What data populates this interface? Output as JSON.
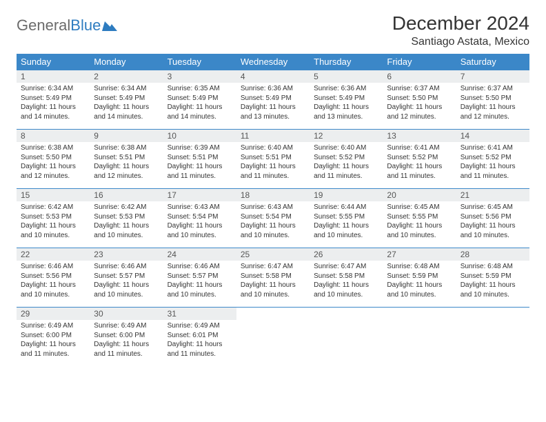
{
  "brand": {
    "part1": "General",
    "part2": "Blue"
  },
  "title": "December 2024",
  "location": "Santiago Astata, Mexico",
  "colors": {
    "header_bg": "#3b87c8",
    "header_text": "#ffffff",
    "daynum_bg": "#eceeef",
    "border": "#3b87c8",
    "logo_gray": "#6b6b6b",
    "logo_blue": "#2e7cc0"
  },
  "weekdays": [
    "Sunday",
    "Monday",
    "Tuesday",
    "Wednesday",
    "Thursday",
    "Friday",
    "Saturday"
  ],
  "first_day_index": 0,
  "days": [
    {
      "n": 1,
      "sunrise": "6:34 AM",
      "sunset": "5:49 PM",
      "daylight": "11 hours and 14 minutes."
    },
    {
      "n": 2,
      "sunrise": "6:34 AM",
      "sunset": "5:49 PM",
      "daylight": "11 hours and 14 minutes."
    },
    {
      "n": 3,
      "sunrise": "6:35 AM",
      "sunset": "5:49 PM",
      "daylight": "11 hours and 14 minutes."
    },
    {
      "n": 4,
      "sunrise": "6:36 AM",
      "sunset": "5:49 PM",
      "daylight": "11 hours and 13 minutes."
    },
    {
      "n": 5,
      "sunrise": "6:36 AM",
      "sunset": "5:49 PM",
      "daylight": "11 hours and 13 minutes."
    },
    {
      "n": 6,
      "sunrise": "6:37 AM",
      "sunset": "5:50 PM",
      "daylight": "11 hours and 12 minutes."
    },
    {
      "n": 7,
      "sunrise": "6:37 AM",
      "sunset": "5:50 PM",
      "daylight": "11 hours and 12 minutes."
    },
    {
      "n": 8,
      "sunrise": "6:38 AM",
      "sunset": "5:50 PM",
      "daylight": "11 hours and 12 minutes."
    },
    {
      "n": 9,
      "sunrise": "6:38 AM",
      "sunset": "5:51 PM",
      "daylight": "11 hours and 12 minutes."
    },
    {
      "n": 10,
      "sunrise": "6:39 AM",
      "sunset": "5:51 PM",
      "daylight": "11 hours and 11 minutes."
    },
    {
      "n": 11,
      "sunrise": "6:40 AM",
      "sunset": "5:51 PM",
      "daylight": "11 hours and 11 minutes."
    },
    {
      "n": 12,
      "sunrise": "6:40 AM",
      "sunset": "5:52 PM",
      "daylight": "11 hours and 11 minutes."
    },
    {
      "n": 13,
      "sunrise": "6:41 AM",
      "sunset": "5:52 PM",
      "daylight": "11 hours and 11 minutes."
    },
    {
      "n": 14,
      "sunrise": "6:41 AM",
      "sunset": "5:52 PM",
      "daylight": "11 hours and 11 minutes."
    },
    {
      "n": 15,
      "sunrise": "6:42 AM",
      "sunset": "5:53 PM",
      "daylight": "11 hours and 10 minutes."
    },
    {
      "n": 16,
      "sunrise": "6:42 AM",
      "sunset": "5:53 PM",
      "daylight": "11 hours and 10 minutes."
    },
    {
      "n": 17,
      "sunrise": "6:43 AM",
      "sunset": "5:54 PM",
      "daylight": "11 hours and 10 minutes."
    },
    {
      "n": 18,
      "sunrise": "6:43 AM",
      "sunset": "5:54 PM",
      "daylight": "11 hours and 10 minutes."
    },
    {
      "n": 19,
      "sunrise": "6:44 AM",
      "sunset": "5:55 PM",
      "daylight": "11 hours and 10 minutes."
    },
    {
      "n": 20,
      "sunrise": "6:45 AM",
      "sunset": "5:55 PM",
      "daylight": "11 hours and 10 minutes."
    },
    {
      "n": 21,
      "sunrise": "6:45 AM",
      "sunset": "5:56 PM",
      "daylight": "11 hours and 10 minutes."
    },
    {
      "n": 22,
      "sunrise": "6:46 AM",
      "sunset": "5:56 PM",
      "daylight": "11 hours and 10 minutes."
    },
    {
      "n": 23,
      "sunrise": "6:46 AM",
      "sunset": "5:57 PM",
      "daylight": "11 hours and 10 minutes."
    },
    {
      "n": 24,
      "sunrise": "6:46 AM",
      "sunset": "5:57 PM",
      "daylight": "11 hours and 10 minutes."
    },
    {
      "n": 25,
      "sunrise": "6:47 AM",
      "sunset": "5:58 PM",
      "daylight": "11 hours and 10 minutes."
    },
    {
      "n": 26,
      "sunrise": "6:47 AM",
      "sunset": "5:58 PM",
      "daylight": "11 hours and 10 minutes."
    },
    {
      "n": 27,
      "sunrise": "6:48 AM",
      "sunset": "5:59 PM",
      "daylight": "11 hours and 10 minutes."
    },
    {
      "n": 28,
      "sunrise": "6:48 AM",
      "sunset": "5:59 PM",
      "daylight": "11 hours and 10 minutes."
    },
    {
      "n": 29,
      "sunrise": "6:49 AM",
      "sunset": "6:00 PM",
      "daylight": "11 hours and 11 minutes."
    },
    {
      "n": 30,
      "sunrise": "6:49 AM",
      "sunset": "6:00 PM",
      "daylight": "11 hours and 11 minutes."
    },
    {
      "n": 31,
      "sunrise": "6:49 AM",
      "sunset": "6:01 PM",
      "daylight": "11 hours and 11 minutes."
    }
  ],
  "labels": {
    "sunrise": "Sunrise:",
    "sunset": "Sunset:",
    "daylight": "Daylight:"
  }
}
